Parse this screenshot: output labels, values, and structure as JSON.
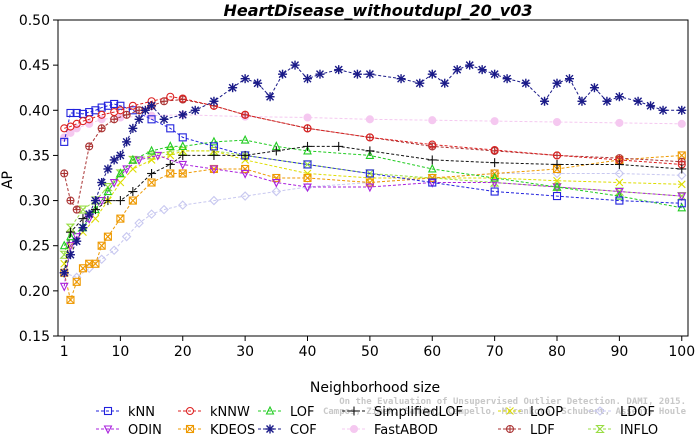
{
  "chart_data": {
    "type": "line",
    "title": "HeartDisease_withoutdupl_20_v03",
    "xlabel": "Neighborhood size",
    "ylabel": "AP",
    "xlim": [
      0,
      101
    ],
    "ylim": [
      0.15,
      0.5
    ],
    "xticks": [
      1,
      10,
      20,
      30,
      40,
      50,
      60,
      70,
      80,
      90,
      100
    ],
    "yticks": [
      0.15,
      0.2,
      0.25,
      0.3,
      0.35,
      0.4,
      0.45,
      0.5
    ],
    "ytick_labels": [
      "0.15",
      "0.20",
      "0.25",
      "0.30",
      "0.35",
      "0.40",
      "0.45",
      "0.50"
    ],
    "grid": false,
    "legend_position": "bottom",
    "credit": [
      "Campos, Zimek, Sander, Campello, Micenkova, Schubert, Assent, Houle",
      "On the Evaluation of Unsupervised Outlier Detection. DAMI, 2015."
    ],
    "series": [
      {
        "name": "kNN",
        "color": "#2222dd",
        "marker": "square",
        "points": [
          [
            1,
            0.365
          ],
          [
            2,
            0.397
          ],
          [
            3,
            0.397
          ],
          [
            4,
            0.396
          ],
          [
            5,
            0.398
          ],
          [
            6,
            0.4
          ],
          [
            7,
            0.403
          ],
          [
            8,
            0.405
          ],
          [
            9,
            0.407
          ],
          [
            10,
            0.405
          ],
          [
            12,
            0.4
          ],
          [
            15,
            0.39
          ],
          [
            18,
            0.38
          ],
          [
            20,
            0.37
          ],
          [
            25,
            0.36
          ],
          [
            30,
            0.35
          ],
          [
            40,
            0.34
          ],
          [
            50,
            0.33
          ],
          [
            60,
            0.32
          ],
          [
            70,
            0.31
          ],
          [
            80,
            0.305
          ],
          [
            90,
            0.3
          ],
          [
            100,
            0.297
          ]
        ]
      },
      {
        "name": "kNNW",
        "color": "#dd2222",
        "marker": "circle",
        "points": [
          [
            1,
            0.38
          ],
          [
            2,
            0.382
          ],
          [
            3,
            0.385
          ],
          [
            4,
            0.388
          ],
          [
            5,
            0.39
          ],
          [
            7,
            0.395
          ],
          [
            9,
            0.398
          ],
          [
            10,
            0.4
          ],
          [
            12,
            0.405
          ],
          [
            15,
            0.41
          ],
          [
            18,
            0.415
          ],
          [
            20,
            0.413
          ],
          [
            25,
            0.405
          ],
          [
            30,
            0.395
          ],
          [
            40,
            0.38
          ],
          [
            50,
            0.37
          ],
          [
            60,
            0.362
          ],
          [
            70,
            0.356
          ],
          [
            80,
            0.35
          ],
          [
            90,
            0.345
          ],
          [
            100,
            0.34
          ]
        ]
      },
      {
        "name": "LOF",
        "color": "#22cc22",
        "marker": "triangle-up",
        "points": [
          [
            1,
            0.25
          ],
          [
            2,
            0.26
          ],
          [
            4,
            0.27
          ],
          [
            6,
            0.29
          ],
          [
            8,
            0.31
          ],
          [
            10,
            0.33
          ],
          [
            12,
            0.345
          ],
          [
            15,
            0.355
          ],
          [
            18,
            0.36
          ],
          [
            20,
            0.36
          ],
          [
            25,
            0.365
          ],
          [
            30,
            0.367
          ],
          [
            35,
            0.36
          ],
          [
            40,
            0.355
          ],
          [
            50,
            0.35
          ],
          [
            60,
            0.335
          ],
          [
            70,
            0.325
          ],
          [
            80,
            0.315
          ],
          [
            90,
            0.305
          ],
          [
            100,
            0.292
          ]
        ]
      },
      {
        "name": "SimplifiedLOF",
        "color": "#111111",
        "marker": "plus",
        "points": [
          [
            1,
            0.22
          ],
          [
            2,
            0.265
          ],
          [
            4,
            0.28
          ],
          [
            6,
            0.29
          ],
          [
            8,
            0.3
          ],
          [
            10,
            0.3
          ],
          [
            12,
            0.31
          ],
          [
            15,
            0.33
          ],
          [
            18,
            0.34
          ],
          [
            20,
            0.35
          ],
          [
            25,
            0.35
          ],
          [
            30,
            0.35
          ],
          [
            35,
            0.355
          ],
          [
            40,
            0.36
          ],
          [
            45,
            0.36
          ],
          [
            50,
            0.355
          ],
          [
            60,
            0.345
          ],
          [
            70,
            0.342
          ],
          [
            80,
            0.34
          ],
          [
            90,
            0.34
          ],
          [
            100,
            0.335
          ]
        ]
      },
      {
        "name": "LoOP",
        "color": "#dddd00",
        "marker": "x",
        "points": [
          [
            1,
            0.23
          ],
          [
            2,
            0.25
          ],
          [
            4,
            0.265
          ],
          [
            6,
            0.28
          ],
          [
            8,
            0.3
          ],
          [
            10,
            0.32
          ],
          [
            12,
            0.335
          ],
          [
            15,
            0.345
          ],
          [
            18,
            0.35
          ],
          [
            20,
            0.355
          ],
          [
            25,
            0.355
          ],
          [
            30,
            0.345
          ],
          [
            40,
            0.33
          ],
          [
            50,
            0.325
          ],
          [
            60,
            0.325
          ],
          [
            70,
            0.325
          ],
          [
            80,
            0.322
          ],
          [
            90,
            0.32
          ],
          [
            100,
            0.318
          ]
        ]
      },
      {
        "name": "LDOF",
        "color": "#c8c8f0",
        "marker": "diamond",
        "points": [
          [
            1,
            0.22
          ],
          [
            3,
            0.215
          ],
          [
            5,
            0.225
          ],
          [
            7,
            0.235
          ],
          [
            9,
            0.245
          ],
          [
            11,
            0.26
          ],
          [
            13,
            0.275
          ],
          [
            15,
            0.285
          ],
          [
            17,
            0.29
          ],
          [
            20,
            0.295
          ],
          [
            25,
            0.3
          ],
          [
            30,
            0.305
          ],
          [
            35,
            0.31
          ],
          [
            40,
            0.315
          ],
          [
            50,
            0.32
          ],
          [
            60,
            0.325
          ],
          [
            70,
            0.33
          ],
          [
            80,
            0.33
          ],
          [
            90,
            0.33
          ],
          [
            100,
            0.328
          ]
        ]
      },
      {
        "name": "ODIN",
        "color": "#aa22dd",
        "marker": "triangle-down",
        "points": [
          [
            1,
            0.205
          ],
          [
            2,
            0.25
          ],
          [
            3,
            0.26
          ],
          [
            5,
            0.28
          ],
          [
            7,
            0.3
          ],
          [
            9,
            0.32
          ],
          [
            11,
            0.335
          ],
          [
            13,
            0.345
          ],
          [
            16,
            0.35
          ],
          [
            20,
            0.34
          ],
          [
            25,
            0.335
          ],
          [
            30,
            0.33
          ],
          [
            35,
            0.32
          ],
          [
            40,
            0.315
          ],
          [
            50,
            0.315
          ],
          [
            60,
            0.32
          ],
          [
            70,
            0.32
          ],
          [
            80,
            0.315
          ],
          [
            90,
            0.31
          ],
          [
            100,
            0.305
          ]
        ]
      },
      {
        "name": "KDEOS",
        "color": "#ee9900",
        "marker": "boxed-x",
        "points": [
          [
            1,
            0.22
          ],
          [
            2,
            0.19
          ],
          [
            3,
            0.21
          ],
          [
            4,
            0.225
          ],
          [
            5,
            0.23
          ],
          [
            6,
            0.23
          ],
          [
            7,
            0.25
          ],
          [
            8,
            0.26
          ],
          [
            10,
            0.28
          ],
          [
            12,
            0.3
          ],
          [
            15,
            0.32
          ],
          [
            18,
            0.33
          ],
          [
            20,
            0.33
          ],
          [
            25,
            0.335
          ],
          [
            30,
            0.335
          ],
          [
            35,
            0.325
          ],
          [
            40,
            0.325
          ],
          [
            50,
            0.32
          ],
          [
            60,
            0.325
          ],
          [
            70,
            0.33
          ],
          [
            80,
            0.335
          ],
          [
            90,
            0.345
          ],
          [
            100,
            0.35
          ]
        ]
      },
      {
        "name": "COF",
        "color": "#1a1a88",
        "marker": "asterisk",
        "points": [
          [
            1,
            0.22
          ],
          [
            2,
            0.24
          ],
          [
            3,
            0.255
          ],
          [
            4,
            0.27
          ],
          [
            5,
            0.285
          ],
          [
            6,
            0.3
          ],
          [
            7,
            0.32
          ],
          [
            8,
            0.335
          ],
          [
            9,
            0.345
          ],
          [
            10,
            0.35
          ],
          [
            11,
            0.365
          ],
          [
            12,
            0.38
          ],
          [
            13,
            0.39
          ],
          [
            14,
            0.4
          ],
          [
            15,
            0.405
          ],
          [
            17,
            0.39
          ],
          [
            20,
            0.395
          ],
          [
            22,
            0.4
          ],
          [
            25,
            0.41
          ],
          [
            28,
            0.425
          ],
          [
            30,
            0.435
          ],
          [
            32,
            0.43
          ],
          [
            34,
            0.415
          ],
          [
            36,
            0.44
          ],
          [
            38,
            0.45
          ],
          [
            40,
            0.435
          ],
          [
            42,
            0.44
          ],
          [
            45,
            0.445
          ],
          [
            48,
            0.44
          ],
          [
            50,
            0.44
          ],
          [
            55,
            0.435
          ],
          [
            58,
            0.43
          ],
          [
            60,
            0.44
          ],
          [
            62,
            0.43
          ],
          [
            64,
            0.445
          ],
          [
            66,
            0.45
          ],
          [
            68,
            0.445
          ],
          [
            70,
            0.44
          ],
          [
            72,
            0.435
          ],
          [
            75,
            0.43
          ],
          [
            78,
            0.41
          ],
          [
            80,
            0.43
          ],
          [
            82,
            0.435
          ],
          [
            84,
            0.41
          ],
          [
            86,
            0.425
          ],
          [
            88,
            0.41
          ],
          [
            90,
            0.415
          ],
          [
            93,
            0.41
          ],
          [
            95,
            0.405
          ],
          [
            97,
            0.4
          ],
          [
            100,
            0.4
          ]
        ]
      },
      {
        "name": "FastABOD",
        "color": "#f5c8f0",
        "marker": "circle-filled",
        "points": [
          [
            1,
            0.37
          ],
          [
            2,
            0.375
          ],
          [
            3,
            0.38
          ],
          [
            5,
            0.385
          ],
          [
            7,
            0.39
          ],
          [
            10,
            0.392
          ],
          [
            15,
            0.394
          ],
          [
            20,
            0.395
          ],
          [
            30,
            0.393
          ],
          [
            40,
            0.392
          ],
          [
            50,
            0.39
          ],
          [
            60,
            0.389
          ],
          [
            70,
            0.388
          ],
          [
            80,
            0.387
          ],
          [
            90,
            0.386
          ],
          [
            100,
            0.385
          ]
        ]
      },
      {
        "name": "LDF",
        "color": "#aa3333",
        "marker": "circle-plus",
        "points": [
          [
            1,
            0.33
          ],
          [
            2,
            0.3
          ],
          [
            3,
            0.29
          ],
          [
            5,
            0.36
          ],
          [
            7,
            0.38
          ],
          [
            9,
            0.39
          ],
          [
            11,
            0.395
          ],
          [
            13,
            0.4
          ],
          [
            15,
            0.405
          ],
          [
            17,
            0.41
          ],
          [
            20,
            0.412
          ],
          [
            25,
            0.405
          ],
          [
            30,
            0.395
          ],
          [
            40,
            0.38
          ],
          [
            50,
            0.37
          ],
          [
            60,
            0.36
          ],
          [
            70,
            0.355
          ],
          [
            80,
            0.35
          ],
          [
            90,
            0.347
          ],
          [
            100,
            0.343
          ]
        ]
      },
      {
        "name": "INFLO",
        "color": "#99dd44",
        "marker": "hourglass",
        "points": [
          [
            1,
            0.24
          ],
          [
            2,
            0.27
          ],
          [
            4,
            0.29
          ],
          [
            6,
            0.3
          ],
          [
            8,
            0.315
          ],
          [
            10,
            0.33
          ],
          [
            12,
            0.345
          ],
          [
            15,
            0.35
          ],
          [
            18,
            0.355
          ],
          [
            20,
            0.355
          ],
          [
            25,
            0.355
          ],
          [
            30,
            0.35
          ],
          [
            40,
            0.34
          ],
          [
            50,
            0.33
          ],
          [
            60,
            0.325
          ],
          [
            70,
            0.32
          ],
          [
            80,
            0.315
          ],
          [
            90,
            0.31
          ],
          [
            100,
            0.305
          ]
        ]
      }
    ],
    "legend_order": [
      "kNN",
      "kNNW",
      "LOF",
      "SimplifiedLOF",
      "LoOP",
      "LDOF",
      "ODIN",
      "KDEOS",
      "COF",
      "FastABOD",
      "LDF",
      "INFLO"
    ]
  }
}
